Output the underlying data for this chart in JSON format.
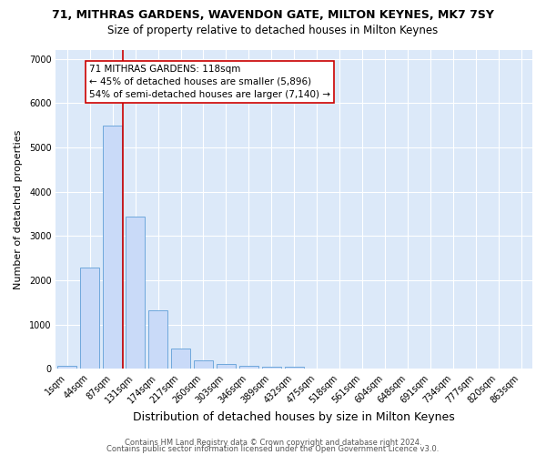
{
  "title": "71, MITHRAS GARDENS, WAVENDON GATE, MILTON KEYNES, MK7 7SY",
  "subtitle": "Size of property relative to detached houses in Milton Keynes",
  "xlabel": "Distribution of detached houses by size in Milton Keynes",
  "ylabel": "Number of detached properties",
  "bar_labels": [
    "1sqm",
    "44sqm",
    "87sqm",
    "131sqm",
    "174sqm",
    "217sqm",
    "260sqm",
    "303sqm",
    "346sqm",
    "389sqm",
    "432sqm",
    "475sqm",
    "518sqm",
    "561sqm",
    "604sqm",
    "648sqm",
    "691sqm",
    "734sqm",
    "777sqm",
    "820sqm",
    "863sqm"
  ],
  "bar_values": [
    75,
    2280,
    5500,
    3430,
    1330,
    460,
    185,
    100,
    65,
    55,
    45,
    0,
    0,
    0,
    0,
    0,
    0,
    0,
    0,
    0,
    0
  ],
  "bar_color": "#c9daf8",
  "bar_edge_color": "#6fa8dc",
  "vline_color": "#cc0000",
  "annotation_text": "71 MITHRAS GARDENS: 118sqm\n← 45% of detached houses are smaller (5,896)\n54% of semi-detached houses are larger (7,140) →",
  "annotation_box_color": "#ffffff",
  "annotation_box_edge": "#cc0000",
  "ylim": [
    0,
    7200
  ],
  "yticks": [
    0,
    1000,
    2000,
    3000,
    4000,
    5000,
    6000,
    7000
  ],
  "bg_color": "#dce9f9",
  "footer_line1": "Contains HM Land Registry data © Crown copyright and database right 2024.",
  "footer_line2": "Contains public sector information licensed under the Open Government Licence v3.0.",
  "title_fontsize": 9,
  "subtitle_fontsize": 8.5,
  "xlabel_fontsize": 9,
  "ylabel_fontsize": 8,
  "tick_fontsize": 7,
  "annotation_fontsize": 7.5,
  "footer_fontsize": 6
}
